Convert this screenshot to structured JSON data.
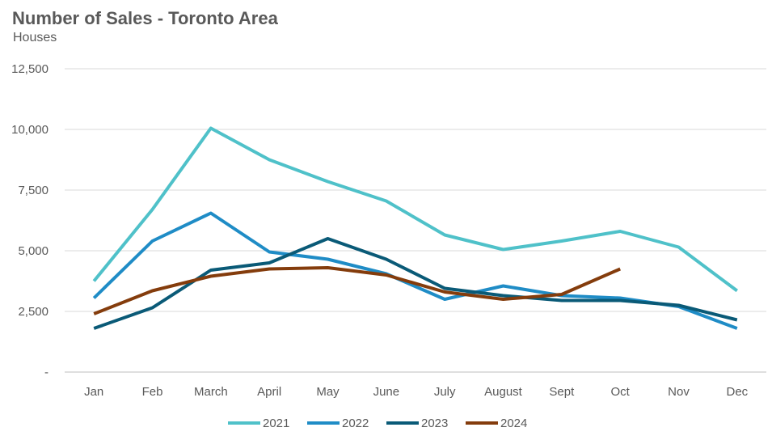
{
  "chart_data": {
    "type": "line",
    "title": "Number of Sales - Toronto Area",
    "subtitle": "Houses",
    "xlabel": "",
    "ylabel": "",
    "categories": [
      "Jan",
      "Feb",
      "March",
      "April",
      "May",
      "June",
      "July",
      "August",
      "Sept",
      "Oct",
      "Nov",
      "Dec"
    ],
    "ylim": [
      0,
      12500
    ],
    "yticks": [
      0,
      2500,
      5000,
      7500,
      10000,
      12500
    ],
    "ytick_labels": [
      "-",
      "2,500",
      "5,000",
      "7,500",
      "10,000",
      "12,500"
    ],
    "grid": "horizontal",
    "legend": "bottom",
    "series": [
      {
        "name": "2021",
        "color": "#4fc1c9",
        "values": [
          3750,
          6700,
          10050,
          8750,
          7850,
          7050,
          5650,
          5050,
          5400,
          5800,
          5150,
          3350
        ]
      },
      {
        "name": "2022",
        "color": "#1f8cc6",
        "values": [
          3050,
          5400,
          6550,
          4950,
          4650,
          4050,
          3000,
          3550,
          3150,
          3050,
          2700,
          1800
        ]
      },
      {
        "name": "2023",
        "color": "#0a5a77",
        "values": [
          1800,
          2650,
          4200,
          4500,
          5500,
          4650,
          3450,
          3150,
          2950,
          2950,
          2750,
          2150
        ]
      },
      {
        "name": "2024",
        "color": "#843c0c",
        "values": [
          2400,
          3350,
          3950,
          4250,
          4300,
          4000,
          3300,
          3000,
          3200,
          4250,
          null,
          null
        ]
      }
    ]
  }
}
